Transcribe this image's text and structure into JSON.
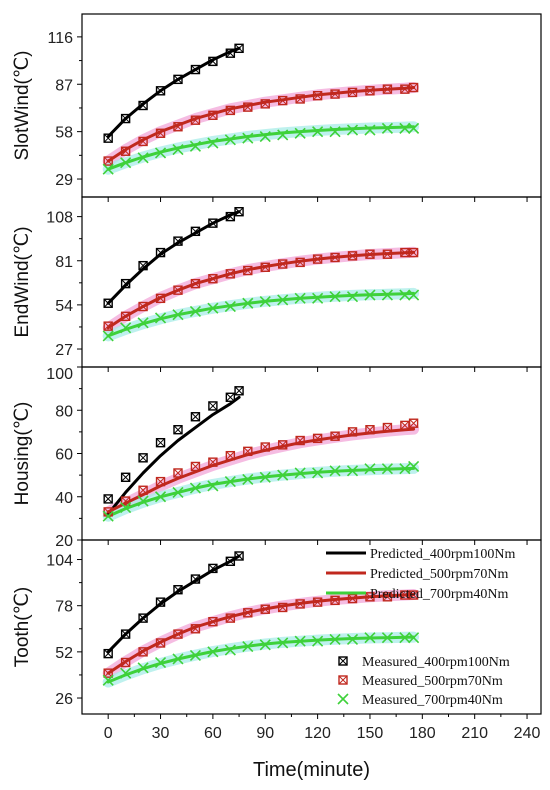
{
  "chart_data": {
    "type": "line",
    "xlabel": "Time(minute)",
    "x_ticks": [
      0,
      30,
      60,
      90,
      120,
      150,
      180,
      210,
      240
    ],
    "xlim": [
      -15,
      248
    ],
    "legend": {
      "placement": "bottom panel, right side",
      "lines": [
        {
          "label": "Predicted_400rpm100Nm",
          "color": "#000000"
        },
        {
          "label": "Predicted_500rpm70Nm",
          "color": "#c0281e"
        },
        {
          "label": "Predicted_700rpm40Nm",
          "color": "#3ed13a"
        }
      ],
      "markers": [
        {
          "label": "Measured_400rpm100Nm",
          "color": "#000000"
        },
        {
          "label": "Measured_500rpm70Nm",
          "color": "#c0281e"
        },
        {
          "label": "Measured_700rpm40Nm",
          "color": "#3ed13a"
        }
      ]
    },
    "band_colors": {
      "red": "#f2a6d8",
      "green": "#a8ece8"
    },
    "panels": [
      {
        "ylabel": "SlotWind(℃)",
        "y_ticks": [
          29,
          58,
          87,
          116
        ],
        "ylim": [
          18,
          130
        ],
        "series": [
          {
            "key": "p400",
            "kind": "predicted",
            "x": [
              0,
              10,
              20,
              30,
              40,
              50,
              60,
              70,
              75
            ],
            "y": [
              55,
              66,
              75,
              83,
              90,
              96,
              102,
              107,
              109
            ]
          },
          {
            "key": "p500",
            "kind": "predicted",
            "x": [
              0,
              10,
              20,
              30,
              40,
              50,
              60,
              70,
              80,
              90,
              100,
              110,
              120,
              130,
              140,
              150,
              160,
              170,
              175
            ],
            "y": [
              40,
              47,
              53,
              58,
              62,
              66,
              69,
              72,
              74,
              76,
              77.5,
              79,
              80.5,
              81.5,
              82.5,
              83.3,
              84,
              84.6,
              85
            ]
          },
          {
            "key": "p700",
            "kind": "predicted",
            "x": [
              0,
              10,
              20,
              30,
              40,
              50,
              60,
              70,
              80,
              90,
              100,
              110,
              120,
              130,
              140,
              150,
              160,
              170,
              175
            ],
            "y": [
              35,
              39,
              42.5,
              45.5,
              48,
              50,
              52,
              53.5,
              55,
              56.2,
              57.2,
              58,
              58.7,
              59.3,
              59.8,
              60.2,
              60.5,
              60.8,
              61
            ]
          },
          {
            "key": "m400",
            "kind": "measured",
            "x": [
              0,
              10,
              20,
              30,
              40,
              50,
              60,
              70,
              75
            ],
            "y": [
              54,
              66,
              74,
              83,
              90,
              96,
              101,
              106,
              109
            ]
          },
          {
            "key": "m500",
            "kind": "measured",
            "x": [
              0,
              10,
              20,
              30,
              40,
              50,
              60,
              70,
              80,
              90,
              100,
              110,
              120,
              130,
              140,
              150,
              160,
              170,
              175
            ],
            "y": [
              40,
              46,
              52,
              57,
              61,
              65,
              68,
              71,
              73,
              75,
              77,
              78,
              80,
              81,
              82,
              83,
              84,
              84,
              85
            ]
          },
          {
            "key": "m700",
            "kind": "measured",
            "x": [
              0,
              10,
              20,
              30,
              40,
              50,
              60,
              70,
              80,
              90,
              100,
              110,
              120,
              130,
              140,
              150,
              160,
              170,
              175
            ],
            "y": [
              35,
              39,
              42,
              45,
              47,
              49,
              51,
              53,
              54,
              55,
              56,
              57,
              58,
              58,
              59,
              59,
              60,
              60,
              60
            ]
          }
        ]
      },
      {
        "ylabel": "EndWind(℃)",
        "y_ticks": [
          27,
          54,
          81,
          108
        ],
        "ylim": [
          16,
          120
        ],
        "series": [
          {
            "key": "p400",
            "kind": "predicted",
            "x": [
              0,
              10,
              20,
              30,
              40,
              50,
              60,
              70,
              75
            ],
            "y": [
              55,
              66,
              76,
              85,
              92,
              98,
              104,
              109,
              111
            ]
          },
          {
            "key": "p500",
            "kind": "predicted",
            "x": [
              0,
              10,
              20,
              30,
              40,
              50,
              60,
              70,
              80,
              90,
              100,
              110,
              120,
              130,
              140,
              150,
              160,
              170,
              175
            ],
            "y": [
              40,
              47,
              53,
              58.5,
              63,
              67,
              70,
              73,
              75.5,
              77.5,
              79.2,
              80.7,
              82,
              83.1,
              84,
              84.8,
              85.4,
              85.9,
              86.2
            ]
          },
          {
            "key": "p700",
            "kind": "predicted",
            "x": [
              0,
              10,
              20,
              30,
              40,
              50,
              60,
              70,
              80,
              90,
              100,
              110,
              120,
              130,
              140,
              150,
              160,
              170,
              175
            ],
            "y": [
              35,
              39,
              42.5,
              45.5,
              48,
              50,
              52,
              53.5,
              55,
              56.2,
              57.2,
              58,
              58.7,
              59.3,
              59.8,
              60.2,
              60.5,
              60.8,
              61
            ]
          },
          {
            "key": "m400",
            "kind": "measured",
            "x": [
              0,
              10,
              20,
              30,
              40,
              50,
              60,
              70,
              75
            ],
            "y": [
              55,
              67,
              78,
              86,
              93,
              99,
              104,
              108,
              111
            ]
          },
          {
            "key": "m500",
            "kind": "measured",
            "x": [
              0,
              10,
              20,
              30,
              40,
              50,
              60,
              70,
              80,
              90,
              100,
              110,
              120,
              130,
              140,
              150,
              160,
              170,
              175
            ],
            "y": [
              41,
              47,
              53,
              58,
              63,
              67,
              70,
              73,
              75,
              77,
              79,
              80,
              82,
              83,
              84,
              85,
              85,
              86,
              86
            ]
          },
          {
            "key": "m700",
            "kind": "measured",
            "x": [
              0,
              10,
              20,
              30,
              40,
              50,
              60,
              70,
              80,
              90,
              100,
              110,
              120,
              130,
              140,
              150,
              160,
              170,
              175
            ],
            "y": [
              35,
              40,
              43,
              46,
              48,
              50,
              52,
              53,
              55,
              56,
              57,
              58,
              58,
              59,
              59,
              60,
              60,
              60,
              60
            ]
          }
        ]
      },
      {
        "ylabel": "Housing(℃)",
        "y_ticks": [
          20,
          40,
          60,
          80,
          100
        ],
        "ylim": [
          20,
          100
        ],
        "series": [
          {
            "key": "p400",
            "kind": "predicted",
            "x": [
              0,
              10,
              20,
              30,
              40,
              50,
              60,
              70,
              75
            ],
            "y": [
              32,
              42,
              51,
              59,
              66,
              72,
              78,
              83,
              86
            ]
          },
          {
            "key": "p500",
            "kind": "predicted",
            "x": [
              0,
              10,
              20,
              30,
              40,
              50,
              60,
              70,
              80,
              90,
              100,
              110,
              120,
              130,
              140,
              150,
              160,
              170,
              175
            ],
            "y": [
              33,
              37,
              41,
              45,
              48.5,
              51.5,
              54.5,
              57,
              59.5,
              61.5,
              63.3,
              65,
              66.3,
              67.5,
              68.6,
              69.5,
              70.3,
              71,
              71.3
            ]
          },
          {
            "key": "p700",
            "kind": "predicted",
            "x": [
              0,
              10,
              20,
              30,
              40,
              50,
              60,
              70,
              80,
              90,
              100,
              110,
              120,
              130,
              140,
              150,
              160,
              170,
              175
            ],
            "y": [
              31,
              34.5,
              37.5,
              40,
              42,
              44,
              45.7,
              47,
              48.2,
              49.2,
              50,
              50.7,
              51.3,
              51.8,
              52.2,
              52.5,
              52.8,
              53,
              53.1
            ]
          },
          {
            "key": "m400",
            "kind": "measured",
            "x": [
              0,
              10,
              20,
              30,
              40,
              50,
              60,
              70,
              75
            ],
            "y": [
              39,
              49,
              58,
              65,
              71,
              77,
              82,
              86,
              89
            ]
          },
          {
            "key": "m500",
            "kind": "measured",
            "x": [
              0,
              10,
              20,
              30,
              40,
              50,
              60,
              70,
              80,
              90,
              100,
              110,
              120,
              130,
              140,
              150,
              160,
              170,
              175
            ],
            "y": [
              33,
              38,
              43,
              47,
              51,
              54,
              56,
              59,
              61,
              63,
              64,
              66,
              67,
              68,
              70,
              71,
              72,
              73,
              74
            ]
          },
          {
            "key": "m700",
            "kind": "measured",
            "x": [
              0,
              10,
              20,
              30,
              40,
              50,
              60,
              70,
              80,
              90,
              100,
              110,
              120,
              130,
              140,
              150,
              160,
              170,
              175
            ],
            "y": [
              31,
              35,
              38,
              40,
              42,
              44,
              45,
              47,
              48,
              49,
              50,
              51,
              51,
              52,
              52,
              53,
              53,
              53,
              54
            ]
          }
        ]
      },
      {
        "ylabel": "Tooth(℃)",
        "y_ticks": [
          26,
          52,
          78,
          104
        ],
        "ylim": [
          17,
          115
        ],
        "series": [
          {
            "key": "p400",
            "kind": "predicted",
            "x": [
              0,
              10,
              20,
              30,
              40,
              50,
              60,
              70,
              75
            ],
            "y": [
              52,
              62,
              71,
              79,
              86,
              92,
              98,
              103,
              106
            ]
          },
          {
            "key": "p500",
            "kind": "predicted",
            "x": [
              0,
              10,
              20,
              30,
              40,
              50,
              60,
              70,
              80,
              90,
              100,
              110,
              120,
              130,
              140,
              150,
              160,
              170,
              175
            ],
            "y": [
              40,
              46.5,
              52.5,
              57.5,
              62,
              66,
              69,
              71.8,
              74.2,
              76.2,
              77.9,
              79.3,
              80.5,
              81.5,
              82.3,
              83,
              83.6,
              84,
              84.3
            ]
          },
          {
            "key": "p700",
            "kind": "predicted",
            "x": [
              0,
              10,
              20,
              30,
              40,
              50,
              60,
              70,
              80,
              90,
              100,
              110,
              120,
              130,
              140,
              150,
              160,
              170,
              175
            ],
            "y": [
              35,
              39,
              42.5,
              45.5,
              48,
              50.2,
              52.2,
              53.8,
              55.2,
              56.4,
              57.3,
              58,
              58.6,
              59.1,
              59.5,
              59.8,
              60,
              60.2,
              60.3
            ]
          },
          {
            "key": "m400",
            "kind": "measured",
            "x": [
              0,
              10,
              20,
              30,
              40,
              50,
              60,
              70,
              75
            ],
            "y": [
              51,
              62,
              71,
              80,
              87,
              93,
              99,
              103,
              106
            ]
          },
          {
            "key": "m500",
            "kind": "measured",
            "x": [
              0,
              10,
              20,
              30,
              40,
              50,
              60,
              70,
              80,
              90,
              100,
              110,
              120,
              130,
              140,
              150,
              160,
              170,
              175
            ],
            "y": [
              40,
              46,
              52,
              57,
              62,
              65,
              69,
              71,
              74,
              76,
              77,
              79,
              80,
              81,
              82,
              83,
              83,
              84,
              84
            ]
          },
          {
            "key": "m700",
            "kind": "measured",
            "x": [
              0,
              10,
              20,
              30,
              40,
              50,
              60,
              70,
              80,
              90,
              100,
              110,
              120,
              130,
              140,
              150,
              160,
              170,
              175
            ],
            "y": [
              36,
              40,
              43,
              46,
              48,
              50,
              52,
              53,
              55,
              56,
              57,
              58,
              58,
              59,
              59,
              60,
              60,
              60,
              60
            ]
          }
        ]
      }
    ]
  }
}
